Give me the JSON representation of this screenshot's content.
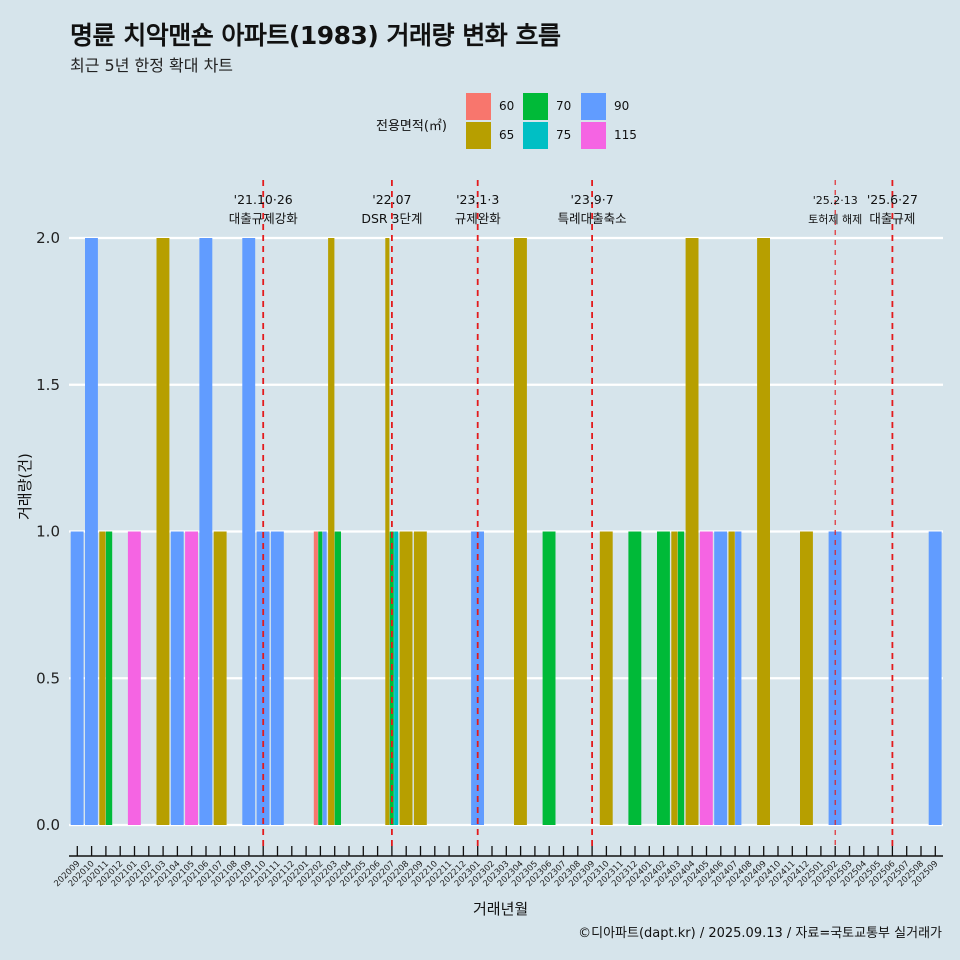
{
  "title": "명륜 치악맨숀 아파트(1983) 거래량 변화 흐름",
  "subtitle": "최근 5년 한정 확대 차트",
  "caption": "©디아파트(dapt.kr) / 2025.09.13 / 자료=국토교통부 실거래가",
  "legend": {
    "title": "전용면적(㎡)",
    "items": [
      {
        "label": "60",
        "color": "#F8766D"
      },
      {
        "label": "65",
        "color": "#B79F00"
      },
      {
        "label": "70",
        "color": "#00BA38"
      },
      {
        "label": "75",
        "color": "#00BFC4"
      },
      {
        "label": "90",
        "color": "#619CFF"
      },
      {
        "label": "115",
        "color": "#F564E3"
      }
    ]
  },
  "chart_data": {
    "type": "bar",
    "position": "dodge",
    "xlabel": "거래년월",
    "ylabel": "거래량(건)",
    "ylim": [
      0,
      2
    ],
    "yticks": [
      "0.0",
      "0.5",
      "1.0",
      "1.5",
      "2.0"
    ],
    "ytick_values": [
      0,
      0.5,
      1.0,
      1.5,
      2.0
    ],
    "grid": true,
    "legend_position": "top",
    "categories": [
      "202009",
      "202010",
      "202011",
      "202012",
      "202101",
      "202102",
      "202103",
      "202104",
      "202105",
      "202106",
      "202107",
      "202108",
      "202109",
      "202110",
      "202111",
      "202112",
      "202201",
      "202202",
      "202203",
      "202204",
      "202205",
      "202206",
      "202207",
      "202208",
      "202209",
      "202210",
      "202211",
      "202212",
      "202301",
      "202302",
      "202303",
      "202304",
      "202305",
      "202306",
      "202307",
      "202308",
      "202309",
      "202310",
      "202311",
      "202312",
      "202401",
      "202402",
      "202403",
      "202404",
      "202405",
      "202406",
      "202407",
      "202408",
      "202409",
      "202410",
      "202411",
      "202412",
      "202501",
      "202502",
      "202503",
      "202504",
      "202505",
      "202506",
      "202507",
      "202508",
      "202509"
    ],
    "series_order": [
      "60",
      "65",
      "70",
      "75",
      "90",
      "115"
    ],
    "data": [
      {
        "month": "202009",
        "values": {
          "90": 1
        }
      },
      {
        "month": "202010",
        "values": {
          "90": 2
        }
      },
      {
        "month": "202011",
        "values": {
          "65": 1,
          "70": 1
        }
      },
      {
        "month": "202101",
        "values": {
          "115": 1
        }
      },
      {
        "month": "202103",
        "values": {
          "65": 2
        }
      },
      {
        "month": "202104",
        "values": {
          "90": 1
        }
      },
      {
        "month": "202105",
        "values": {
          "115": 1
        }
      },
      {
        "month": "202106",
        "values": {
          "90": 2
        }
      },
      {
        "month": "202107",
        "values": {
          "65": 1
        }
      },
      {
        "month": "202109",
        "values": {
          "90": 2
        }
      },
      {
        "month": "202110",
        "values": {
          "90": 1
        }
      },
      {
        "month": "202111",
        "values": {
          "90": 1
        }
      },
      {
        "month": "202202",
        "values": {
          "60": 1,
          "70": 1,
          "90": 1
        }
      },
      {
        "month": "202203",
        "values": {
          "65": 2,
          "70": 1
        }
      },
      {
        "month": "202207",
        "values": {
          "65": 2,
          "70": 1,
          "75": 1
        }
      },
      {
        "month": "202208",
        "values": {
          "65": 1
        }
      },
      {
        "month": "202209",
        "values": {
          "65": 1
        }
      },
      {
        "month": "202301",
        "values": {
          "90": 1
        }
      },
      {
        "month": "202304",
        "values": {
          "65": 2
        }
      },
      {
        "month": "202306",
        "values": {
          "70": 1
        }
      },
      {
        "month": "202310",
        "values": {
          "65": 1
        }
      },
      {
        "month": "202312",
        "values": {
          "70": 1
        }
      },
      {
        "month": "202402",
        "values": {
          "70": 1
        }
      },
      {
        "month": "202403",
        "values": {
          "65": 1,
          "70": 1
        }
      },
      {
        "month": "202404",
        "values": {
          "65": 2
        }
      },
      {
        "month": "202405",
        "values": {
          "115": 1
        }
      },
      {
        "month": "202406",
        "values": {
          "90": 1
        }
      },
      {
        "month": "202407",
        "values": {
          "65": 1,
          "90": 1
        }
      },
      {
        "month": "202409",
        "values": {
          "65": 2
        }
      },
      {
        "month": "202412",
        "values": {
          "65": 1
        }
      },
      {
        "month": "202502",
        "values": {
          "90": 1
        }
      },
      {
        "month": "202509",
        "values": {
          "90": 1
        }
      }
    ],
    "annotations": [
      {
        "month": "202110",
        "date": "'21.10·26",
        "label": "대출규제강화",
        "thin": false
      },
      {
        "month": "202207",
        "date": "'22.07",
        "label": "DSR 3단계",
        "thin": false
      },
      {
        "month": "202301",
        "date": "'23.1·3",
        "label": "규제완화",
        "thin": false
      },
      {
        "month": "202309",
        "date": "'23.9·7",
        "label": "특례대출축소",
        "thin": false
      },
      {
        "month": "202502",
        "date": "'25.2·13",
        "label": "토허제 해제",
        "thin": true
      },
      {
        "month": "202506",
        "date": "'25.6·27",
        "label": "대출규제",
        "thin": false
      }
    ],
    "annotation_color": "#E31A1C"
  }
}
